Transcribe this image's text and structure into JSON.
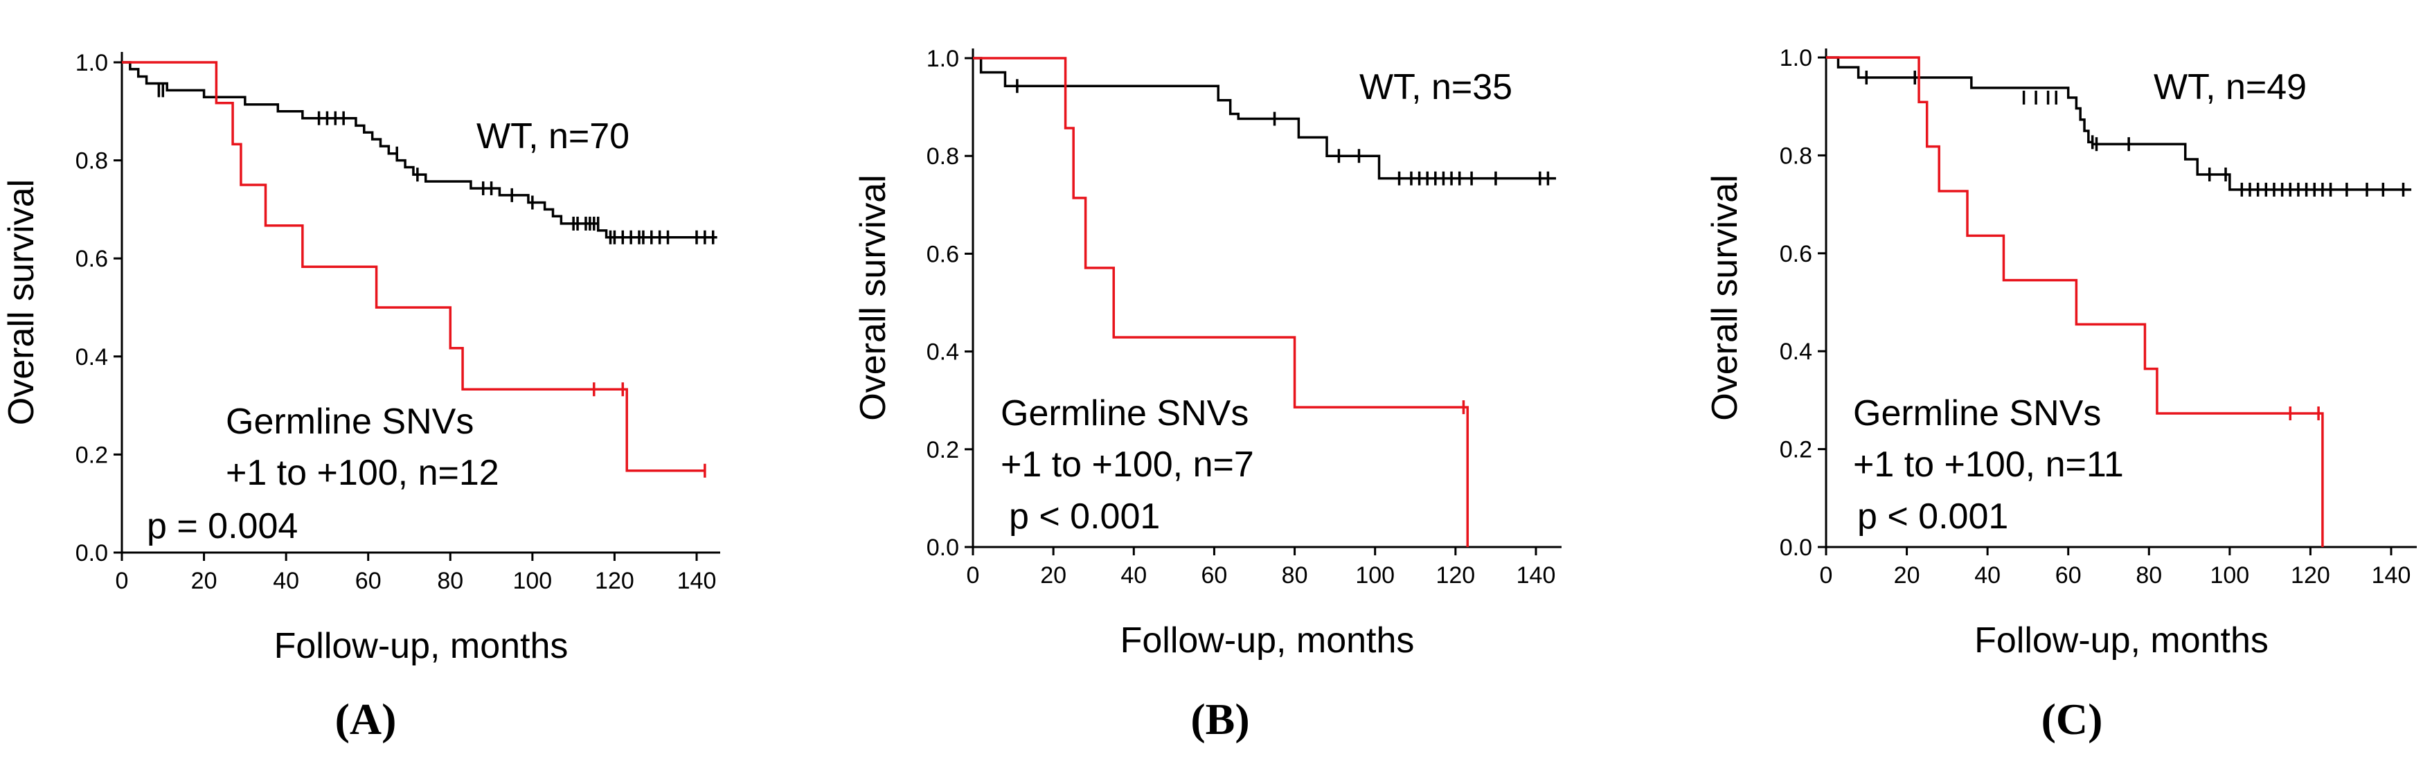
{
  "chart_data": [
    {
      "type": "line",
      "subtype": "kaplan-meier",
      "panel_label": "(A)",
      "xlabel": "Follow-up,  months",
      "ylabel": "Overall survival",
      "xlim": [
        0,
        150
      ],
      "ylim": [
        0,
        1.05
      ],
      "xticks": [
        0,
        20,
        40,
        60,
        80,
        100,
        120,
        140
      ],
      "yticks": [
        "0.0",
        "0.2",
        "0.4",
        "0.6",
        "0.8",
        "1.0"
      ],
      "annotations": [
        "WT, n=70",
        "Germline SNVs",
        "+1 to +100, n=12",
        "p = 0.004"
      ],
      "series": [
        {
          "name": "WT, n=70",
          "color": "#000000",
          "steps": [
            [
              0,
              1.0
            ],
            [
              2,
              0.986
            ],
            [
              4,
              0.971
            ],
            [
              6,
              0.957
            ],
            [
              11,
              0.943
            ],
            [
              20,
              0.929
            ],
            [
              30,
              0.914
            ],
            [
              38,
              0.9
            ],
            [
              44,
              0.886
            ],
            [
              57,
              0.871
            ],
            [
              59,
              0.857
            ],
            [
              61,
              0.843
            ],
            [
              63,
              0.829
            ],
            [
              65,
              0.814
            ],
            [
              67,
              0.8
            ],
            [
              69,
              0.786
            ],
            [
              71,
              0.771
            ],
            [
              74,
              0.757
            ],
            [
              85,
              0.743
            ],
            [
              92,
              0.729
            ],
            [
              99,
              0.714
            ],
            [
              103,
              0.7
            ],
            [
              105,
              0.686
            ],
            [
              107,
              0.671
            ],
            [
              116,
              0.657
            ],
            [
              118,
              0.643
            ]
          ],
          "end_x": 145,
          "censored": [
            [
              9,
              0.943
            ],
            [
              10,
              0.943
            ],
            [
              48,
              0.886
            ],
            [
              50,
              0.886
            ],
            [
              52,
              0.886
            ],
            [
              54,
              0.886
            ],
            [
              67,
              0.814
            ],
            [
              72,
              0.771
            ],
            [
              88,
              0.743
            ],
            [
              90,
              0.743
            ],
            [
              95,
              0.729
            ],
            [
              100,
              0.714
            ],
            [
              110,
              0.671
            ],
            [
              111,
              0.671
            ],
            [
              113,
              0.671
            ],
            [
              114,
              0.671
            ],
            [
              115,
              0.671
            ],
            [
              116,
              0.671
            ],
            [
              119,
              0.643
            ],
            [
              120,
              0.643
            ],
            [
              122,
              0.643
            ],
            [
              124,
              0.643
            ],
            [
              126,
              0.643
            ],
            [
              127,
              0.643
            ],
            [
              129,
              0.643
            ],
            [
              131,
              0.643
            ],
            [
              133,
              0.643
            ],
            [
              140,
              0.643
            ],
            [
              142,
              0.643
            ],
            [
              144,
              0.643
            ]
          ]
        },
        {
          "name": "Germline SNVs +1 to +100, n=12",
          "color": "#e8141c",
          "steps": [
            [
              0,
              1.0
            ],
            [
              23,
              0.917
            ],
            [
              27,
              0.833
            ],
            [
              29,
              0.75
            ],
            [
              35,
              0.667
            ],
            [
              44,
              0.583
            ],
            [
              62,
              0.5
            ],
            [
              80,
              0.417
            ],
            [
              83,
              0.333
            ],
            [
              123,
              0.167
            ]
          ],
          "end_x": 142,
          "censored": [
            [
              115,
              0.333
            ],
            [
              122,
              0.333
            ],
            [
              142,
              0.167
            ]
          ]
        }
      ]
    },
    {
      "type": "line",
      "subtype": "kaplan-meier",
      "panel_label": "(B)",
      "xlabel": "Follow-up,  months",
      "ylabel": "Overall survival",
      "xlim": [
        0,
        150
      ],
      "ylim": [
        0,
        1.05
      ],
      "xticks": [
        0,
        20,
        40,
        60,
        80,
        100,
        120,
        140
      ],
      "yticks": [
        "0.0",
        "0.2",
        "0.4",
        "0.6",
        "0.8",
        "1.0"
      ],
      "annotations": [
        "WT, n=35",
        "Germline SNVs",
        "+1 to +100, n=7",
        "p < 0.001"
      ],
      "series": [
        {
          "name": "WT, n=35",
          "color": "#000000",
          "steps": [
            [
              0,
              1.0
            ],
            [
              2,
              0.971
            ],
            [
              8,
              0.943
            ],
            [
              61,
              0.914
            ],
            [
              64,
              0.886
            ],
            [
              66,
              0.876
            ],
            [
              81,
              0.838
            ],
            [
              88,
              0.8
            ],
            [
              101,
              0.754
            ]
          ],
          "end_x": 145,
          "censored": [
            [
              11,
              0.943
            ],
            [
              75,
              0.876
            ],
            [
              91,
              0.8
            ],
            [
              96,
              0.8
            ],
            [
              106,
              0.754
            ],
            [
              109,
              0.754
            ],
            [
              111,
              0.754
            ],
            [
              113,
              0.754
            ],
            [
              115,
              0.754
            ],
            [
              117,
              0.754
            ],
            [
              119,
              0.754
            ],
            [
              121,
              0.754
            ],
            [
              124,
              0.754
            ],
            [
              130,
              0.754
            ],
            [
              141,
              0.754
            ],
            [
              143,
              0.754
            ]
          ]
        },
        {
          "name": "Germline SNVs +1 to +100, n=7",
          "color": "#e8141c",
          "steps": [
            [
              0,
              1.0
            ],
            [
              23,
              0.857
            ],
            [
              25,
              0.714
            ],
            [
              28,
              0.571
            ],
            [
              35,
              0.429
            ],
            [
              80,
              0.286
            ],
            [
              123,
              0.0
            ]
          ],
          "end_x": 123,
          "censored": [
            [
              122,
              0.286
            ]
          ]
        }
      ]
    },
    {
      "type": "line",
      "subtype": "kaplan-meier",
      "panel_label": "(C)",
      "xlabel": "Follow-up,  months",
      "ylabel": "Overall survival",
      "xlim": [
        0,
        150
      ],
      "ylim": [
        0,
        1.05
      ],
      "xticks": [
        0,
        20,
        40,
        60,
        80,
        100,
        120,
        140
      ],
      "yticks": [
        "0.0",
        "0.2",
        "0.4",
        "0.6",
        "0.8",
        "1.0"
      ],
      "annotations": [
        "WT, n=49",
        "Germline SNVs",
        "+1 to +100, n=11",
        "p < 0.001"
      ],
      "series": [
        {
          "name": "WT, n=49",
          "color": "#000000",
          "steps": [
            [
              0,
              1.0
            ],
            [
              3,
              0.98
            ],
            [
              8,
              0.959
            ],
            [
              36,
              0.938
            ],
            [
              60,
              0.918
            ],
            [
              62,
              0.896
            ],
            [
              63,
              0.873
            ],
            [
              64,
              0.85
            ],
            [
              65,
              0.827
            ],
            [
              66,
              0.823
            ],
            [
              89,
              0.792
            ],
            [
              92,
              0.761
            ],
            [
              100,
              0.73
            ]
          ],
          "end_x": 145,
          "censored": [
            [
              10,
              0.959
            ],
            [
              22,
              0.959
            ],
            [
              49,
              0.918
            ],
            [
              52,
              0.918
            ],
            [
              55,
              0.918
            ],
            [
              57,
              0.918
            ],
            [
              66,
              0.827
            ],
            [
              67,
              0.823
            ],
            [
              75,
              0.823
            ],
            [
              95,
              0.761
            ],
            [
              99,
              0.761
            ],
            [
              103,
              0.73
            ],
            [
              105,
              0.73
            ],
            [
              107,
              0.73
            ],
            [
              109,
              0.73
            ],
            [
              111,
              0.73
            ],
            [
              113,
              0.73
            ],
            [
              115,
              0.73
            ],
            [
              117,
              0.73
            ],
            [
              119,
              0.73
            ],
            [
              121,
              0.73
            ],
            [
              123,
              0.73
            ],
            [
              125,
              0.73
            ],
            [
              129,
              0.73
            ],
            [
              134,
              0.73
            ],
            [
              138,
              0.73
            ],
            [
              143,
              0.73
            ]
          ]
        },
        {
          "name": "Germline SNVs +1 to +100, n=11",
          "color": "#e8141c",
          "steps": [
            [
              0,
              1.0
            ],
            [
              23,
              0.909
            ],
            [
              25,
              0.818
            ],
            [
              28,
              0.727
            ],
            [
              35,
              0.636
            ],
            [
              44,
              0.545
            ],
            [
              62,
              0.455
            ],
            [
              79,
              0.364
            ],
            [
              82,
              0.273
            ],
            [
              123,
              0.0
            ]
          ],
          "end_x": 123,
          "censored": [
            [
              115,
              0.273
            ],
            [
              122,
              0.273
            ]
          ]
        }
      ]
    }
  ]
}
